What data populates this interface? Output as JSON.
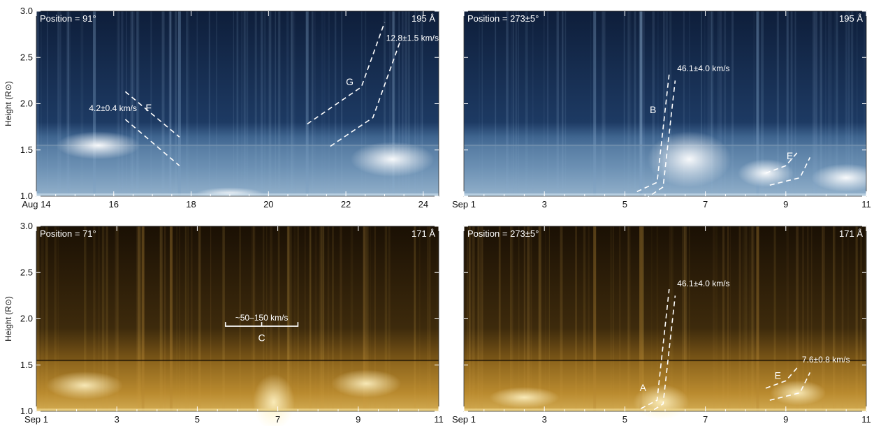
{
  "chart_data": [
    {
      "type": "heatmap",
      "panel": "top-left",
      "position_label": "Position = 91°",
      "wavelength_label": "195 Å",
      "colormap": "blue",
      "ylabel": "Height (R⊙)",
      "ylim": [
        1.0,
        3.0
      ],
      "yticks": [
        "1.0",
        "1.5",
        "2.0",
        "2.5",
        "3.0"
      ],
      "xlim": [
        14,
        24.4
      ],
      "xticks": [
        {
          "value": 14,
          "label": "Aug 14"
        },
        {
          "value": 16,
          "label": "16"
        },
        {
          "value": 18,
          "label": "18"
        },
        {
          "value": 20,
          "label": "20"
        },
        {
          "value": 22,
          "label": "22"
        },
        {
          "value": 24,
          "label": "24"
        }
      ],
      "features": [
        {
          "label": "F",
          "speed": "4.2±0.4 km/s",
          "lines": [
            [
              [
                16.3,
                2.13
              ],
              [
                17.7,
                1.64
              ]
            ],
            [
              [
                16.3,
                1.83
              ],
              [
                17.7,
                1.33
              ]
            ]
          ]
        },
        {
          "label": "G",
          "speed": "12.8±1.5 km/s",
          "lines": [
            [
              [
                21.0,
                1.78
              ],
              [
                22.4,
                2.18
              ],
              [
                23.0,
                2.88
              ]
            ],
            [
              [
                21.6,
                1.54
              ],
              [
                22.7,
                1.85
              ],
              [
                23.4,
                2.67
              ]
            ]
          ]
        }
      ]
    },
    {
      "type": "heatmap",
      "panel": "top-right",
      "position_label": "Position = 273±5°",
      "wavelength_label": "195 Å",
      "colormap": "blue",
      "ylim": [
        1.0,
        3.0
      ],
      "xlim": [
        1,
        11
      ],
      "xticks": [
        {
          "value": 1,
          "label": "Sep 1"
        },
        {
          "value": 3,
          "label": "3"
        },
        {
          "value": 5,
          "label": "5"
        },
        {
          "value": 7,
          "label": "7"
        },
        {
          "value": 9,
          "label": "9"
        },
        {
          "value": 11,
          "label": "11"
        }
      ],
      "features": [
        {
          "label": "B",
          "speed": "46.1±4.0 km/s",
          "lines": [
            [
              [
                5.3,
                1.05
              ],
              [
                5.8,
                1.15
              ],
              [
                6.1,
                2.32
              ]
            ],
            [
              [
                5.5,
                0.97
              ],
              [
                5.95,
                1.1
              ],
              [
                6.25,
                2.25
              ]
            ]
          ]
        },
        {
          "label": "E",
          "speed": "",
          "lines": [
            [
              [
                8.5,
                1.25
              ],
              [
                9.0,
                1.33
              ],
              [
                9.3,
                1.48
              ]
            ],
            [
              [
                8.6,
                1.12
              ],
              [
                9.35,
                1.2
              ],
              [
                9.6,
                1.42
              ]
            ]
          ]
        }
      ]
    },
    {
      "type": "heatmap",
      "panel": "bottom-left",
      "position_label": "Position = 71°",
      "wavelength_label": "171 Å",
      "colormap": "gold",
      "ylabel": "Height (R⊙)",
      "ylim": [
        1.0,
        3.0
      ],
      "yticks": [
        "1.0",
        "1.5",
        "2.0",
        "2.5",
        "3.0"
      ],
      "xlim": [
        1,
        11
      ],
      "xticks": [
        {
          "value": 1,
          "label": "Sep 1"
        },
        {
          "value": 3,
          "label": "3"
        },
        {
          "value": 5,
          "label": "5"
        },
        {
          "value": 7,
          "label": "7"
        },
        {
          "value": 9,
          "label": "9"
        },
        {
          "value": 11,
          "label": "11"
        }
      ],
      "features": [
        {
          "label": "C",
          "speed": "~50–150 km/s",
          "bracket": {
            "x0": 5.7,
            "x1": 7.5,
            "y": 1.92
          }
        }
      ]
    },
    {
      "type": "heatmap",
      "panel": "bottom-right",
      "position_label": "Position = 273±5°",
      "wavelength_label": "171 Å",
      "colormap": "gold",
      "ylim": [
        1.0,
        3.0
      ],
      "xlim": [
        1,
        11
      ],
      "xticks": [
        {
          "value": 1,
          "label": "Sep 1"
        },
        {
          "value": 3,
          "label": "3"
        },
        {
          "value": 5,
          "label": "5"
        },
        {
          "value": 7,
          "label": "7"
        },
        {
          "value": 9,
          "label": "9"
        },
        {
          "value": 11,
          "label": "11"
        }
      ],
      "features": [
        {
          "label": "A",
          "speed": "46.1±4.0 km/s",
          "lines": [
            [
              [
                5.4,
                1.03
              ],
              [
                5.8,
                1.12
              ],
              [
                6.1,
                2.32
              ]
            ],
            [
              [
                5.55,
                0.97
              ],
              [
                5.95,
                1.08
              ],
              [
                6.25,
                2.25
              ]
            ]
          ]
        },
        {
          "label": "E",
          "speed": "7.6±0.8 km/s",
          "lines": [
            [
              [
                8.5,
                1.25
              ],
              [
                9.0,
                1.33
              ],
              [
                9.3,
                1.48
              ]
            ],
            [
              [
                8.6,
                1.12
              ],
              [
                9.35,
                1.2
              ],
              [
                9.6,
                1.42
              ]
            ]
          ]
        }
      ]
    }
  ]
}
